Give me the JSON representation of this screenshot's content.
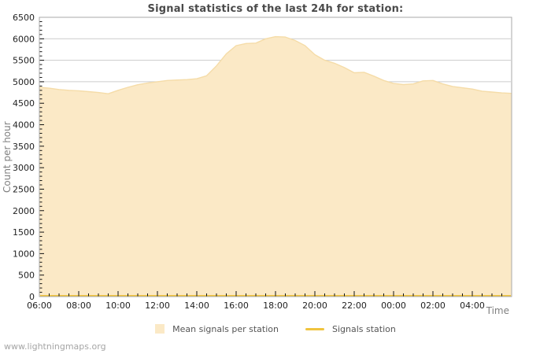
{
  "title": "Signal statistics of the last 24h for station:",
  "y_axis_title": "Count per hour",
  "x_axis_title": "Time",
  "watermark": "www.lightningmaps.org",
  "legend": {
    "items": [
      {
        "label": "Mean signals per station",
        "swatch": "area"
      },
      {
        "label": "Signals station",
        "swatch": "line"
      }
    ]
  },
  "colors": {
    "area_fill": "#FBE9C6",
    "area_edge": "#F5DCA8",
    "line": "#F0C43E",
    "grid": "#CCCCCC",
    "border": "#AAAAAA",
    "tick": "#111111",
    "tick_text": "#222222",
    "axis_title_text": "#808080",
    "title_text": "#4A4A4A",
    "legend_text": "#555555",
    "watermark_text": "#A5A5A5",
    "plot_background": "#FFFFFF"
  },
  "chart_data": {
    "type": "area",
    "title": "Signal statistics of the last 24h for station:",
    "xlabel": "Time",
    "ylabel": "Count per hour",
    "grid": "horizontal-only",
    "legend_position": "bottom-center",
    "ylim": [
      0,
      6500
    ],
    "y_major_step": 500,
    "y_minor_step": 100,
    "y_tick_labels": [
      "0",
      "500",
      "1000",
      "1500",
      "2000",
      "2500",
      "3000",
      "3500",
      "4000",
      "4500",
      "5000",
      "5500",
      "6000",
      "6500"
    ],
    "x_span_hours": 24,
    "x_major_step_hours": 2,
    "x_minor_step_hours": 0.5,
    "x_tick_labels": [
      "06:00",
      "08:00",
      "10:00",
      "12:00",
      "14:00",
      "16:00",
      "18:00",
      "20:00",
      "22:00",
      "00:00",
      "02:00",
      "04:00"
    ],
    "series": [
      {
        "name": "Mean signals per station",
        "type": "area",
        "fill": "#FBE9C6",
        "edge": "#F5DCA8",
        "x_start_hour_offset": 0,
        "x_step_hours": 0.5,
        "start_time": "06:00",
        "values": [
          4870,
          4850,
          4820,
          4800,
          4790,
          4770,
          4750,
          4720,
          4800,
          4870,
          4930,
          4970,
          5000,
          5030,
          5040,
          5050,
          5070,
          5140,
          5370,
          5650,
          5840,
          5890,
          5900,
          6000,
          6050,
          6040,
          5960,
          5840,
          5630,
          5500,
          5430,
          5330,
          5210,
          5220,
          5130,
          5030,
          4960,
          4935,
          4950,
          5020,
          5030,
          4950,
          4890,
          4860,
          4830,
          4780,
          4760,
          4740,
          4730
        ]
      },
      {
        "name": "Signals station",
        "type": "line",
        "color": "#F0C43E",
        "constant_value": 0
      }
    ]
  }
}
